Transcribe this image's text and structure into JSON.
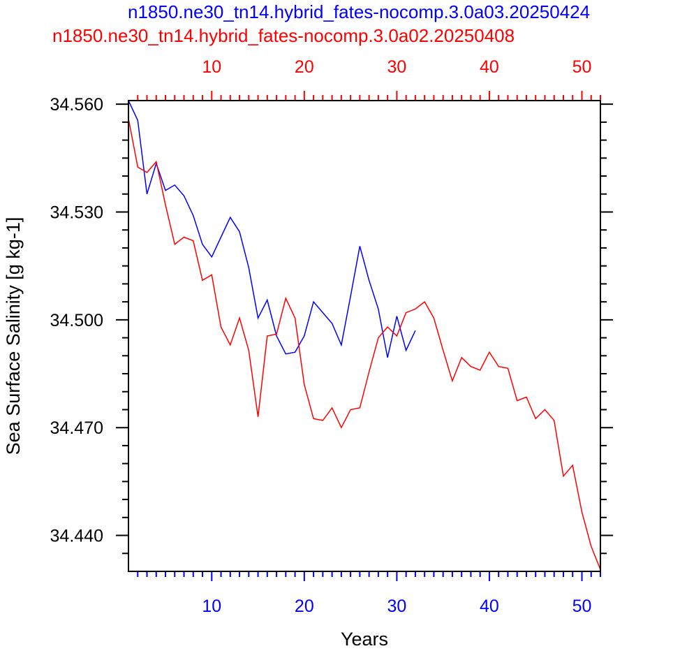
{
  "chart_data": {
    "type": "line",
    "xlabel": "Years",
    "ylabel": "Sea Surface Salinity [g kg-1]",
    "xlim": [
      1,
      52
    ],
    "ylim": [
      34.43,
      34.561
    ],
    "x_ticks": [
      10,
      20,
      30,
      40,
      50
    ],
    "y_ticks": [
      34.44,
      34.47,
      34.5,
      34.53,
      34.56
    ],
    "y_tick_labels": [
      "34.440",
      "34.470",
      "34.500",
      "34.530",
      "34.560"
    ],
    "grid": false,
    "series": [
      {
        "name": "n1850.ne30_tn14.hybrid_fates-nocomp.3.0a03.20250424",
        "color": "#0000ff",
        "axis": "bottom",
        "x": [
          1,
          2,
          3,
          4,
          5,
          6,
          7,
          8,
          9,
          10,
          11,
          12,
          13,
          14,
          15,
          16,
          17,
          18,
          19,
          20,
          21,
          22,
          23,
          24,
          25,
          26,
          27,
          28,
          29,
          30,
          31,
          32
        ],
        "y": [
          34.561,
          34.5555,
          34.535,
          34.5435,
          34.536,
          34.5375,
          34.5345,
          34.529,
          34.521,
          34.5175,
          34.523,
          34.5285,
          34.5245,
          34.5145,
          34.5005,
          34.5055,
          34.4955,
          34.4905,
          34.491,
          34.4955,
          34.505,
          34.502,
          34.499,
          34.493,
          34.5065,
          34.5205,
          34.511,
          34.503,
          34.4895,
          34.501,
          34.4915,
          34.497
        ]
      },
      {
        "name": "n1850.ne30_tn14.hybrid_fates-nocomp.3.0a02.20250408",
        "color": "#ff0000",
        "axis": "top",
        "x": [
          1,
          2,
          3,
          4,
          5,
          6,
          7,
          8,
          9,
          10,
          11,
          12,
          13,
          14,
          15,
          16,
          17,
          18,
          19,
          20,
          21,
          22,
          23,
          24,
          25,
          26,
          27,
          28,
          29,
          30,
          31,
          32,
          33,
          34,
          35,
          36,
          37,
          38,
          39,
          40,
          41,
          42,
          43,
          44,
          45,
          46,
          47,
          48,
          49,
          50,
          51,
          52
        ],
        "y": [
          34.556,
          34.5425,
          34.541,
          34.544,
          34.532,
          34.521,
          34.523,
          34.522,
          34.511,
          34.5125,
          34.498,
          34.493,
          34.5005,
          34.4915,
          34.473,
          34.4955,
          34.496,
          34.506,
          34.5005,
          34.482,
          34.4725,
          34.472,
          34.4755,
          34.47,
          34.475,
          34.4755,
          34.4855,
          34.495,
          34.498,
          34.4955,
          34.502,
          34.503,
          34.505,
          34.5005,
          34.4915,
          34.483,
          34.4895,
          34.487,
          34.486,
          34.491,
          34.487,
          34.4865,
          34.4775,
          34.4785,
          34.4725,
          34.475,
          34.472,
          34.4565,
          34.4595,
          34.4465,
          34.437,
          34.4305
        ]
      }
    ]
  }
}
